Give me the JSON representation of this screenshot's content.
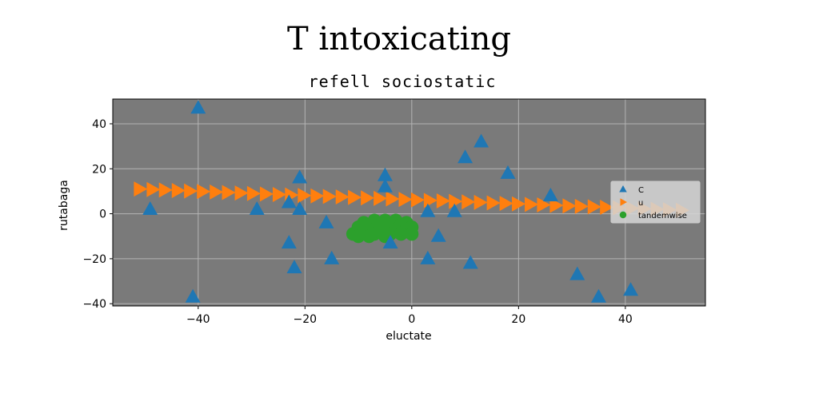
{
  "chart_data": {
    "type": "scatter",
    "title": "T intoxicating",
    "subtitle": "refell sociostatic",
    "xlabel": "eluctate",
    "ylabel": "rutabaga",
    "xlim": [
      -56,
      55
    ],
    "ylim": [
      -41,
      51
    ],
    "xticks": [
      -40,
      -20,
      0,
      20,
      40
    ],
    "yticks": [
      -40,
      -20,
      0,
      20,
      40
    ],
    "grid": true,
    "legend_position": "right",
    "colors": {
      "plot_bg": "#7a7a7a",
      "grid": "#b4b4b4",
      "C": "#1f77b4",
      "u": "#ff7f0e",
      "tandemwise": "#2ca02c"
    },
    "series": [
      {
        "name": "C",
        "marker": "triangle-up",
        "points": [
          [
            -40,
            47
          ],
          [
            -41,
            -37
          ],
          [
            -49,
            2
          ],
          [
            -29,
            2
          ],
          [
            -23,
            5
          ],
          [
            -21,
            2
          ],
          [
            -21,
            16
          ],
          [
            -23,
            -13
          ],
          [
            -22,
            -24
          ],
          [
            -16,
            -4
          ],
          [
            -15,
            -20
          ],
          [
            -5,
            17
          ],
          [
            -5,
            12
          ],
          [
            -4,
            -13
          ],
          [
            3,
            1
          ],
          [
            3,
            -20
          ],
          [
            5,
            -10
          ],
          [
            8,
            1
          ],
          [
            10,
            25
          ],
          [
            11,
            -22
          ],
          [
            13,
            32
          ],
          [
            18,
            18
          ],
          [
            26,
            8
          ],
          [
            31,
            -27
          ],
          [
            35,
            -37
          ],
          [
            41,
            -34
          ]
        ]
      },
      {
        "name": "u",
        "marker": "triangle-right",
        "points": [
          [
            -51.0,
            11.0
          ],
          [
            -48.6,
            10.78
          ],
          [
            -46.3,
            10.56
          ],
          [
            -43.9,
            10.34
          ],
          [
            -41.6,
            10.12
          ],
          [
            -39.2,
            9.9
          ],
          [
            -36.8,
            9.68
          ],
          [
            -34.5,
            9.46
          ],
          [
            -32.1,
            9.23
          ],
          [
            -29.8,
            9.01
          ],
          [
            -27.4,
            8.79
          ],
          [
            -25.0,
            8.57
          ],
          [
            -22.7,
            8.35
          ],
          [
            -20.3,
            8.13
          ],
          [
            -17.9,
            7.91
          ],
          [
            -15.6,
            7.69
          ],
          [
            -13.2,
            7.47
          ],
          [
            -10.9,
            7.25
          ],
          [
            -8.5,
            7.03
          ],
          [
            -6.1,
            6.81
          ],
          [
            -3.8,
            6.59
          ],
          [
            -1.4,
            6.37
          ],
          [
            0.9,
            6.15
          ],
          [
            3.3,
            5.93
          ],
          [
            5.7,
            5.71
          ],
          [
            8.0,
            5.49
          ],
          [
            10.4,
            5.27
          ],
          [
            12.7,
            5.05
          ],
          [
            15.1,
            4.83
          ],
          [
            17.5,
            4.61
          ],
          [
            19.8,
            4.39
          ],
          [
            22.2,
            4.17
          ],
          [
            24.5,
            3.95
          ],
          [
            26.9,
            3.73
          ],
          [
            29.3,
            3.51
          ],
          [
            31.6,
            3.29
          ],
          [
            34.0,
            3.07
          ],
          [
            36.3,
            2.85
          ],
          [
            38.7,
            2.63
          ],
          [
            41.1,
            2.41
          ],
          [
            43.4,
            2.19
          ],
          [
            45.8,
            1.97
          ],
          [
            48.1,
            1.75
          ],
          [
            50.5,
            1.53
          ]
        ]
      },
      {
        "name": "tandemwise",
        "marker": "circle",
        "points": [
          [
            -11,
            -9
          ],
          [
            -10,
            -6
          ],
          [
            -10,
            -10
          ],
          [
            -9,
            -4
          ],
          [
            -9,
            -8
          ],
          [
            -8,
            -6
          ],
          [
            -8,
            -10
          ],
          [
            -7,
            -3
          ],
          [
            -7,
            -7
          ],
          [
            -7,
            -9
          ],
          [
            -6,
            -5
          ],
          [
            -6,
            -8
          ],
          [
            -5,
            -3
          ],
          [
            -5,
            -7
          ],
          [
            -5,
            -10
          ],
          [
            -4,
            -5
          ],
          [
            -4,
            -9
          ],
          [
            -3,
            -3
          ],
          [
            -3,
            -7
          ],
          [
            -2,
            -5
          ],
          [
            -2,
            -9
          ],
          [
            -1,
            -4
          ],
          [
            -1,
            -7
          ],
          [
            0,
            -6
          ],
          [
            0,
            -9
          ]
        ]
      }
    ]
  }
}
